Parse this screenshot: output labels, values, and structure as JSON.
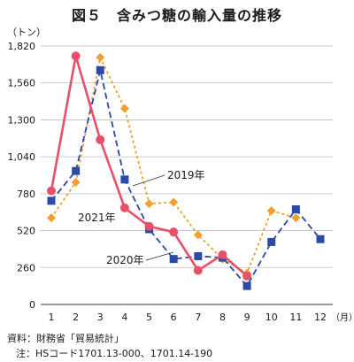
{
  "title": "図５　含みつ糖の輸入量の推移",
  "notes": {
    "source": "資料：財務省「貿易統計」",
    "hs": "注：HSコード1701.13-000、1701.14-190"
  },
  "chart_data": {
    "type": "line",
    "title": "図５　含みつ糖の輸入量の推移",
    "ylabel": "（トン）",
    "xlabel": "",
    "x_unit": "（月）",
    "categories": [
      "1",
      "2",
      "3",
      "4",
      "5",
      "6",
      "7",
      "8",
      "9",
      "10",
      "11",
      "12"
    ],
    "ylim": [
      0,
      1820
    ],
    "yticks": [
      "0",
      "260",
      "520",
      "780",
      "1,040",
      "1,300",
      "1,560",
      "1,820"
    ],
    "ytick_values": [
      0,
      260,
      520,
      780,
      1040,
      1300,
      1560,
      1820
    ],
    "grid": "horizontal",
    "series": [
      {
        "name": "2019年",
        "color": "#f0a030",
        "marker": "diamond",
        "dash": "dotted",
        "values": [
          610,
          860,
          1740,
          1380,
          710,
          720,
          490,
          320,
          220,
          660,
          610,
          null
        ]
      },
      {
        "name": "2020年",
        "color": "#2b4aa8",
        "marker": "square",
        "dash": "dashed",
        "values": [
          730,
          940,
          1650,
          880,
          530,
          320,
          340,
          330,
          130,
          440,
          670,
          460
        ]
      },
      {
        "name": "2021年",
        "color": "#e8506a",
        "marker": "circle",
        "dash": "solid",
        "values": [
          800,
          1750,
          1160,
          680,
          550,
          510,
          240,
          350,
          200,
          null,
          null,
          null
        ]
      }
    ],
    "annotations": [
      "2019年",
      "2021年",
      "2020年"
    ]
  }
}
